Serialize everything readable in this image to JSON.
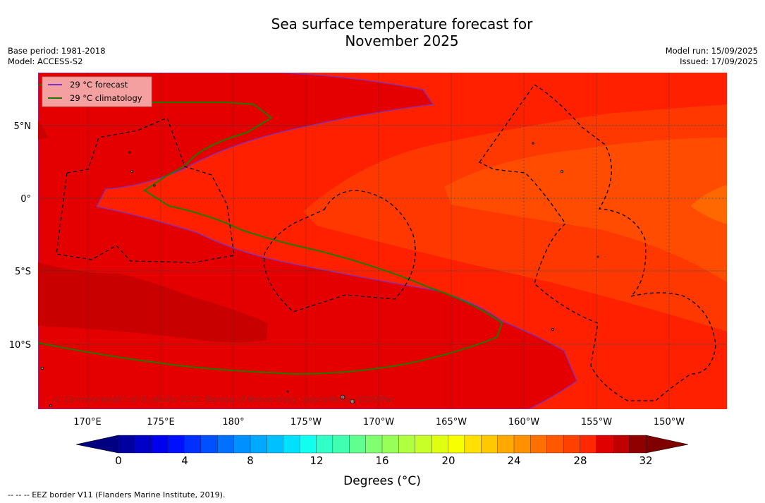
{
  "title_line1": "Sea surface temperature forecast for",
  "title_line2": "November 2025",
  "meta_left": {
    "base_period": "Base period: 1981-2018",
    "model": "Model: ACCESS-S2"
  },
  "meta_right": {
    "model_run": "Model run: 15/09/2025",
    "issued": "Issued: 17/09/2025"
  },
  "legend": {
    "forecast": "29 °C  forecast",
    "climatology": "29 °C  climatology"
  },
  "lat_labels": [
    "5°N",
    "0°",
    "5°S",
    "10°S"
  ],
  "lon_labels": [
    "170°E",
    "175°E",
    "180°",
    "175°W",
    "170°W",
    "165°W",
    "160°W",
    "155°W",
    "150°W"
  ],
  "copyright": "© Commonwealth of Australia 2025, Bureau of Meteorology, supported by COSPPac",
  "colorbar": {
    "ticks": [
      "0",
      "4",
      "8",
      "12",
      "16",
      "20",
      "24",
      "28",
      "32"
    ],
    "label": "Degrees (°C)",
    "colors": [
      "#000080",
      "#0000a0",
      "#0000c8",
      "#0000f0",
      "#0010ff",
      "#0030ff",
      "#0050ff",
      "#0070ff",
      "#0090ff",
      "#00a8ff",
      "#00c0ff",
      "#00e0ff",
      "#10fff0",
      "#30ffc8",
      "#40ffb0",
      "#60ff90",
      "#80ff70",
      "#98ff58",
      "#b0ff40",
      "#c8ff28",
      "#e0ff10",
      "#f8ff00",
      "#ffe000",
      "#ffc800",
      "#ffa800",
      "#ff9000",
      "#ff7000",
      "#ff5800",
      "#ff4000",
      "#ff2800",
      "#e00000",
      "#c00000",
      "#900000",
      "#800000"
    ]
  },
  "footer": "--  --  -- EEZ border V11 (Flanders Marine Institute, 2019).",
  "colors": {
    "ocean_base": "#ff2000",
    "warm_29": "#e40000",
    "warm_30": "#c80000",
    "cool_28": "#ff3800",
    "cool_27": "#ff4c00",
    "cool_26": "#ff6800",
    "forecast_line": "#8030c0",
    "climatology_line": "#207800"
  }
}
